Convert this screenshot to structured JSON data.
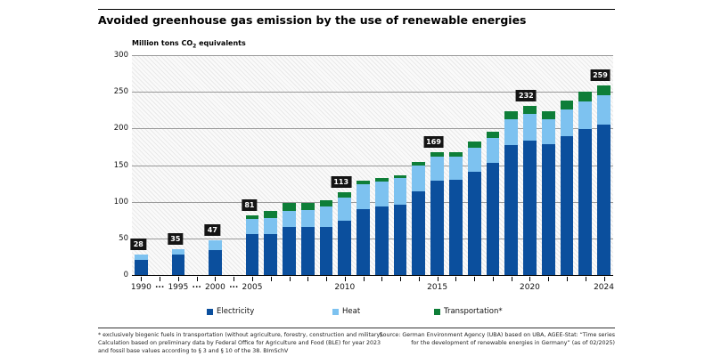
{
  "header": {
    "title": "Avoided greenhouse gas emission by the use of renewable energies"
  },
  "chart_data": {
    "type": "bar",
    "subtype": "stacked",
    "title": "Avoided greenhouse gas emission by the use of renewable energies",
    "unit_prefix": "Million tons CO",
    "unit_sub": "2",
    "unit_suffix": " equivalents",
    "ylim": [
      0,
      300
    ],
    "yticks": [
      "0",
      "50",
      "100",
      "150",
      "200",
      "250",
      "300"
    ],
    "gap_marker": "...",
    "series_names": [
      "Electricity",
      "Heat",
      "Transportation*"
    ],
    "colors": {
      "electricity": "#0b4f9d",
      "heat": "#7dc2f0",
      "transportation": "#0e7e38",
      "total_label_bg": "#141414",
      "total_label_text": "#ffffff"
    },
    "bars": [
      {
        "year": "1990",
        "show_year": true,
        "gap_after": true,
        "electricity": 21,
        "heat": 7,
        "transportation": 0,
        "total_label": "28",
        "electricity_label": "21",
        "heat_label": "7"
      },
      {
        "year": "1995",
        "show_year": true,
        "gap_after": true,
        "electricity": 28,
        "heat": 7,
        "transportation": 0,
        "total_label": "35",
        "electricity_label": "28",
        "heat_label": "7"
      },
      {
        "year": "2000",
        "show_year": true,
        "gap_after": true,
        "electricity": 34,
        "heat": 13,
        "transportation": 0,
        "total_label": "47",
        "electricity_label": "34",
        "heat_label": "13"
      },
      {
        "year": "2005",
        "show_year": true,
        "electricity": 56,
        "heat": 20,
        "transportation": 5,
        "total_label": "81",
        "electricity_label": "56",
        "heat_label": "20",
        "transportation_label": "5"
      },
      {
        "year": "2006",
        "electricity": 56,
        "heat": 22,
        "transportation": 9
      },
      {
        "year": "2007",
        "electricity": 66,
        "heat": 22,
        "transportation": 11
      },
      {
        "year": "2008",
        "electricity": 65,
        "heat": 24,
        "transportation": 9
      },
      {
        "year": "2009",
        "electricity": 65,
        "heat": 28,
        "transportation": 9
      },
      {
        "year": "2010",
        "show_year": true,
        "electricity": 74,
        "heat": 32,
        "transportation": 7,
        "total_label": "113",
        "electricity_label": "74",
        "heat_label": "32",
        "transportation_label": "7"
      },
      {
        "year": "2011",
        "electricity": 90,
        "heat": 34,
        "transportation": 5
      },
      {
        "year": "2012",
        "electricity": 93,
        "heat": 35,
        "transportation": 4
      },
      {
        "year": "2013",
        "electricity": 96,
        "heat": 36,
        "transportation": 4
      },
      {
        "year": "2014",
        "electricity": 114,
        "heat": 35,
        "transportation": 5
      },
      {
        "year": "2015",
        "show_year": true,
        "electricity": 129,
        "heat": 33,
        "transportation": 6,
        "total_label": "169",
        "electricity_label": "129",
        "heat_label": "33",
        "transportation_label": "6"
      },
      {
        "year": "2016",
        "electricity": 130,
        "heat": 31,
        "transportation": 7
      },
      {
        "year": "2017",
        "electricity": 141,
        "heat": 33,
        "transportation": 8
      },
      {
        "year": "2018",
        "electricity": 153,
        "heat": 34,
        "transportation": 9
      },
      {
        "year": "2019",
        "electricity": 177,
        "heat": 36,
        "transportation": 10
      },
      {
        "year": "2020",
        "show_year": true,
        "electricity": 184,
        "heat": 36,
        "transportation": 11,
        "total_label": "232",
        "electricity_label": "184",
        "heat_label": "36",
        "transportation_label": "11"
      },
      {
        "year": "2021",
        "electricity": 179,
        "heat": 34,
        "transportation": 11
      },
      {
        "year": "2022",
        "electricity": 189,
        "heat": 37,
        "transportation": 12
      },
      {
        "year": "2023",
        "electricity": 199,
        "heat": 38,
        "transportation": 13
      },
      {
        "year": "2024",
        "show_year": true,
        "electricity": 205,
        "heat": 40,
        "transportation": 14,
        "total_label": "259",
        "electricity_label": "205",
        "heat_label": "40",
        "transportation_label": "14"
      }
    ]
  },
  "legend": {
    "items": [
      {
        "label": "Electricity",
        "color": "#0b4f9d"
      },
      {
        "label": "Heat",
        "color": "#7dc2f0"
      },
      {
        "label": "Transportation*",
        "color": "#0e7e38"
      }
    ]
  },
  "footer": {
    "footnote_lines": [
      "* exclusively biogenic fuels in transportation (without agriculture, forestry, construction and military).",
      "Calculation based on preliminary data by Federal Office for Agriculture and Food (BLE) for year 2023",
      "and fossil base values according to § 3 and § 10 of the 38. BImSchV"
    ],
    "source_lines": [
      "Source: German Environment Agency (UBA) based on UBA, AGEE-Stat: “Time series",
      "for the development of renewable energies in Germany” (as of 02/2025)"
    ]
  }
}
